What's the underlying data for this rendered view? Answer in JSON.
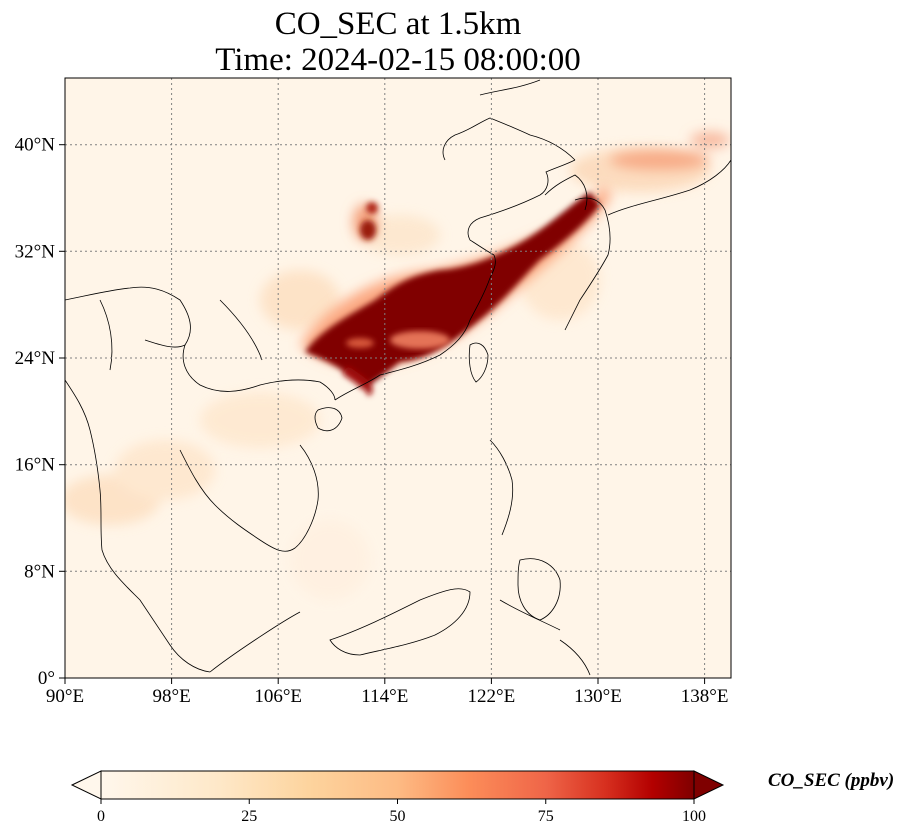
{
  "title": {
    "line1": "CO_SEC at 1.5km",
    "line2": "Time: 2024-02-15 08:00:00"
  },
  "map": {
    "lon_range": [
      90,
      140
    ],
    "lat_range": [
      0,
      45
    ],
    "lon_ticks": [
      "90°E",
      "98°E",
      "106°E",
      "114°E",
      "122°E",
      "130°E",
      "138°E"
    ],
    "lon_tick_values": [
      90,
      98,
      106,
      114,
      122,
      130,
      138
    ],
    "lat_ticks": [
      "0°",
      "8°N",
      "16°N",
      "24°N",
      "32°N",
      "40°N"
    ],
    "lat_tick_values": [
      0,
      8,
      16,
      24,
      32,
      40
    ],
    "gridlines": true,
    "colormap": "OrRd",
    "background_color": "#fff5e8",
    "coastline_color": "#000000"
  },
  "colorbar": {
    "label": "CO_SEC (ppbv)",
    "ticks": [
      "0",
      "25",
      "50",
      "75",
      "100"
    ],
    "tick_values": [
      0,
      25,
      50,
      75,
      100
    ],
    "range": [
      0,
      100
    ],
    "extend": "both",
    "colors": [
      "#fff7ec",
      "#fdd49e",
      "#fdbb84",
      "#ef6548",
      "#d7301f",
      "#b30000",
      "#7f0000"
    ]
  }
}
